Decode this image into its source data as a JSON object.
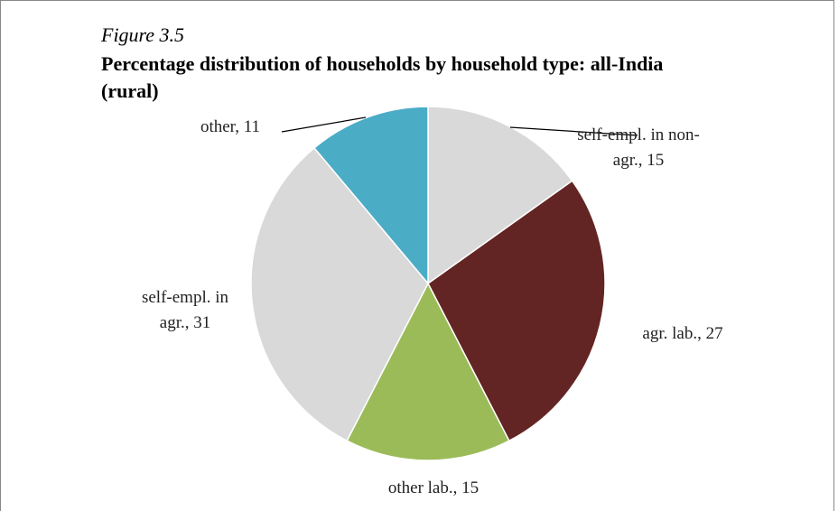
{
  "chart_data": {
    "type": "pie",
    "figure_label": "Figure 3.5",
    "title": "Percentage distribution of households by household type: all-India (rural)",
    "categories": [
      "self-empl. in non-agr.",
      "agr. lab.",
      "other lab.",
      "self-empl. in agr.",
      "other"
    ],
    "values": [
      15,
      27,
      15,
      31,
      11
    ],
    "value_labels": [
      "self-empl. in non-agr., 15",
      "agr. lab., 27",
      "other lab., 15",
      "self-empl. in agr., 31",
      "other, 11"
    ],
    "colors": [
      "#d9d9d9",
      "#632523",
      "#9bbb59",
      "#d9d9d9",
      "#4bacc6"
    ]
  }
}
